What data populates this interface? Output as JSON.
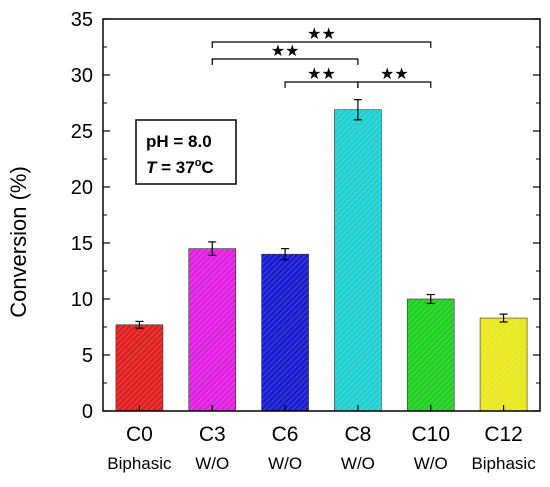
{
  "chart_data": {
    "type": "bar",
    "ylabel": "Conversion  (%)",
    "ylim": [
      0,
      35
    ],
    "yticks": [
      "0",
      "5",
      "10",
      "15",
      "20",
      "25",
      "30",
      "35"
    ],
    "categories": [
      "C0",
      "C3",
      "C6",
      "C8",
      "C10",
      "C12"
    ],
    "subcategories": [
      "Biphasic",
      "W/O",
      "W/O",
      "W/O",
      "W/O",
      "Biphasic"
    ],
    "values": [
      7.7,
      14.5,
      14.0,
      26.9,
      10.0,
      8.3
    ],
    "errors": [
      0.3,
      0.6,
      0.5,
      0.9,
      0.4,
      0.35
    ],
    "colors": [
      "#e02020",
      "#e020e0",
      "#1a1ad0",
      "#20d0d0",
      "#20d020",
      "#e8e820"
    ],
    "annotation": {
      "line1": "pH = 8.0",
      "line2_var": "T",
      "line2_eq": " = 37",
      "line2_sup": "o",
      "line2_unit": "C"
    },
    "significance": [
      {
        "from": 1,
        "to": 4,
        "label": "★★"
      },
      {
        "from": 1,
        "to": 3,
        "label": "★★"
      },
      {
        "from": 2,
        "to": 3,
        "label": "★★"
      },
      {
        "from": 3,
        "to": 4,
        "label": "★★"
      }
    ]
  }
}
